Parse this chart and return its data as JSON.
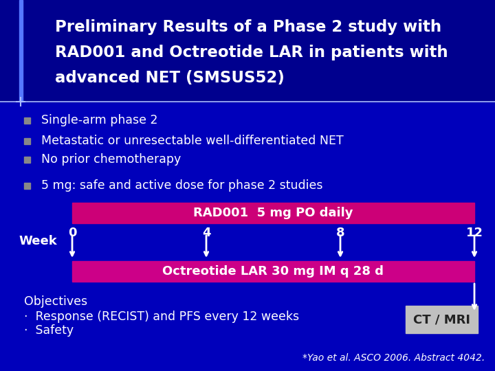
{
  "bg_color": "#0000bb",
  "header_color": "#00008e",
  "title_lines": [
    "Preliminary Results of a Phase 2 study with",
    "RAD001 and Octreotide LAR in patients with",
    "advanced NET (SMSUS52)"
  ],
  "title_color": "#ffffff",
  "title_fontsize": 16.5,
  "accent_color": "#5577ff",
  "accent_bottom_color": "#aabbff",
  "bullets": [
    "Single-arm phase 2",
    "Metastatic or unresectable well-differentiated NET",
    "No prior chemotherapy",
    "5 mg: safe and active dose for phase 2 studies"
  ],
  "bullet_fontsize": 12.5,
  "bullet_color": "#ffffff",
  "bullet_sq_color": "#888888",
  "rad_bar_color": "#cc0077",
  "rad_bar_text": "RAD001  5 mg PO daily",
  "oct_bar_color": "#cc0088",
  "oct_bar_text": "Octreotide LAR 30 mg IM q 28 d",
  "bar_text_color": "#ffffff",
  "bar_text_fontsize": 13,
  "week_label": "Week",
  "week_ticks": [
    "0",
    "4",
    "8",
    "12"
  ],
  "week_fontsize": 13,
  "arrow_color": "#ffffff",
  "objectives_text": "Objectives",
  "obj_fontsize": 12.5,
  "obj_bullets": [
    "·  Response (RECIST) and PFS every 12 weeks",
    "·  Safety"
  ],
  "ct_mri_text": "CT / MRI",
  "ct_mri_bg": "#c0c0c0",
  "ct_mri_fontsize": 13,
  "footnote": "*Yao et al. ASCO 2006. Abstract 4042.",
  "footnote_color": "#ffffff",
  "footnote_fontsize": 10
}
